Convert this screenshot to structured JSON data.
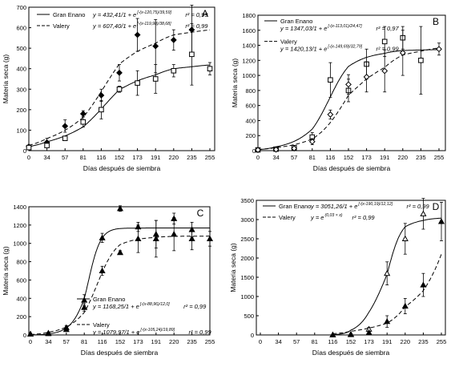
{
  "chart_data": [
    {
      "panel": "A",
      "type": "scatter",
      "xlabel": "Días después de siembra",
      "ylabel": "Materia seca (g)",
      "ylim": [
        0,
        700
      ],
      "yticks": [
        0,
        100,
        200,
        300,
        400,
        500,
        600,
        700
      ],
      "xticks": [
        0,
        34,
        57,
        81,
        116,
        152,
        173,
        191,
        220,
        235,
        255
      ],
      "legend_position": "top-left",
      "series": [
        {
          "name": "Gran Enano",
          "marker": "filled-diamond",
          "line": "solid",
          "equation": "y = 432,41/1 + e",
          "exponent": "[-(x-120,75)/39,59]",
          "r2": "r² = 0,99",
          "points": [
            {
              "x": 0,
              "y": 20,
              "err": 5
            },
            {
              "x": 34,
              "y": 40,
              "err": 20
            },
            {
              "x": 57,
              "y": 120,
              "err": 30
            },
            {
              "x": 81,
              "y": 180,
              "err": 15
            },
            {
              "x": 116,
              "y": 270,
              "err": 30
            },
            {
              "x": 152,
              "y": 380,
              "err": 40
            },
            {
              "x": 173,
              "y": 565,
              "err": 80
            },
            {
              "x": 191,
              "y": 510,
              "err": 130
            },
            {
              "x": 220,
              "y": 540,
              "err": 50
            },
            {
              "x": 235,
              "y": 590,
              "err": 120
            }
          ]
        },
        {
          "name": "Valery",
          "marker": "open-square",
          "line": "dashed",
          "equation": "y = 607,40/1 + e",
          "exponent": "[-(x-119,98)/38,68]",
          "r2": "r² = 0,99",
          "points": [
            {
              "x": 0,
              "y": 15,
              "err": 5
            },
            {
              "x": 34,
              "y": 25,
              "err": 10
            },
            {
              "x": 57,
              "y": 60,
              "err": 10
            },
            {
              "x": 81,
              "y": 140,
              "err": 25
            },
            {
              "x": 116,
              "y": 200,
              "err": 45
            },
            {
              "x": 152,
              "y": 300,
              "err": 15
            },
            {
              "x": 173,
              "y": 330,
              "err": 60
            },
            {
              "x": 191,
              "y": 350,
              "err": 70
            },
            {
              "x": 220,
              "y": 390,
              "err": 30
            },
            {
              "x": 235,
              "y": 470,
              "err": 150
            },
            {
              "x": 255,
              "y": 400,
              "err": 30
            }
          ]
        }
      ]
    },
    {
      "panel": "B",
      "type": "scatter",
      "xlabel": "Días después de siembra",
      "ylabel": "Materia seca (g)",
      "ylim": [
        0,
        1800
      ],
      "yticks": [
        0,
        200,
        400,
        600,
        800,
        1000,
        1200,
        1400,
        1600,
        1800
      ],
      "xticks": [
        0,
        34,
        57,
        81,
        116,
        152,
        173,
        191,
        220,
        235,
        255
      ],
      "legend_position": "top-left",
      "series": [
        {
          "name": "Gran Enano",
          "marker": "open-square",
          "line": "solid",
          "equation": "y = 1347,03/1 + e",
          "exponent": "[-(x-113,01)/24,47]",
          "r2": "r² = 0,97",
          "points": [
            {
              "x": 0,
              "y": 10,
              "err": 5
            },
            {
              "x": 34,
              "y": 20,
              "err": 10
            },
            {
              "x": 57,
              "y": 40,
              "err": 20
            },
            {
              "x": 81,
              "y": 180,
              "err": 60
            },
            {
              "x": 116,
              "y": 940,
              "err": 230
            },
            {
              "x": 152,
              "y": 800,
              "err": 150
            },
            {
              "x": 173,
              "y": 1150,
              "err": 200
            },
            {
              "x": 191,
              "y": 1450,
              "err": 200
            },
            {
              "x": 220,
              "y": 1500,
              "err": 150
            },
            {
              "x": 235,
              "y": 1200,
              "err": 450
            }
          ]
        },
        {
          "name": "Valery",
          "marker": "open-diamond",
          "line": "dashed",
          "equation": "y = 1420,13/1 + e",
          "exponent": "[-(x-149,69)/32,79]",
          "r2": "r² = 0,99",
          "points": [
            {
              "x": 0,
              "y": 10,
              "err": 5
            },
            {
              "x": 34,
              "y": 15,
              "err": 5
            },
            {
              "x": 57,
              "y": 30,
              "err": 10
            },
            {
              "x": 81,
              "y": 120,
              "err": 40
            },
            {
              "x": 116,
              "y": 480,
              "err": 60
            },
            {
              "x": 152,
              "y": 880,
              "err": 130
            },
            {
              "x": 173,
              "y": 980,
              "err": 200
            },
            {
              "x": 191,
              "y": 1060,
              "err": 280
            },
            {
              "x": 220,
              "y": 1300,
              "err": 300
            },
            {
              "x": 255,
              "y": 1350,
              "err": 80
            }
          ]
        }
      ]
    },
    {
      "panel": "C",
      "type": "scatter",
      "xlabel": "Días después de siembra",
      "ylabel": "Materia seca (g)",
      "ylim": [
        0,
        1400
      ],
      "yticks": [
        0,
        200,
        400,
        600,
        800,
        1000,
        1200,
        1400
      ],
      "xticks": [
        0,
        34,
        57,
        81,
        116,
        152,
        173,
        191,
        220,
        235,
        255
      ],
      "legend_position": "bottom-right",
      "series": [
        {
          "name": "Gran Enano",
          "marker": "triangle",
          "line": "solid",
          "equation": "y = 1168,25/1 + e",
          "exponent": "[-(x-88,96)/12,0]",
          "r2": "r² = 0,99",
          "points": [
            {
              "x": 0,
              "y": 10,
              "err": 5
            },
            {
              "x": 34,
              "y": 20,
              "err": 10
            },
            {
              "x": 57,
              "y": 80,
              "err": 20
            },
            {
              "x": 81,
              "y": 380,
              "err": 60
            },
            {
              "x": 116,
              "y": 1060,
              "err": 50
            },
            {
              "x": 152,
              "y": 1380,
              "err": 30
            },
            {
              "x": 173,
              "y": 1180,
              "err": 50
            },
            {
              "x": 191,
              "y": 1100,
              "err": 150
            },
            {
              "x": 220,
              "y": 1270,
              "err": 60
            },
            {
              "x": 235,
              "y": 1150,
              "err": 80
            }
          ]
        },
        {
          "name": "Valery",
          "marker": "triangle",
          "line": "dashed",
          "equation": "y = 1079,97/1 + e",
          "exponent": "[-(x-105,24)/19,89]",
          "r2": "r² = 0,99",
          "points": [
            {
              "x": 0,
              "y": 10,
              "err": 5
            },
            {
              "x": 34,
              "y": 15,
              "err": 5
            },
            {
              "x": 57,
              "y": 60,
              "err": 15
            },
            {
              "x": 81,
              "y": 300,
              "err": 40
            },
            {
              "x": 116,
              "y": 700,
              "err": 50
            },
            {
              "x": 152,
              "y": 900,
              "err": 20
            },
            {
              "x": 173,
              "y": 1050,
              "err": 150
            },
            {
              "x": 191,
              "y": 1050,
              "err": 200
            },
            {
              "x": 220,
              "y": 1100,
              "err": 180
            },
            {
              "x": 235,
              "y": 1050,
              "err": 120
            },
            {
              "x": 255,
              "y": 1050,
              "err": 80
            }
          ]
        }
      ]
    },
    {
      "panel": "D",
      "type": "scatter",
      "xlabel": "Días después de siembra",
      "ylabel": "Materia seca (g)",
      "ylim": [
        0,
        3500
      ],
      "yticks": [
        0,
        500,
        1000,
        1500,
        2000,
        2500,
        3000,
        3500
      ],
      "xticks": [
        0,
        34,
        57,
        81,
        116,
        152,
        173,
        191,
        220,
        235,
        255
      ],
      "legend_position": "top-left",
      "series": [
        {
          "name": "Gran Enano",
          "marker": "open-triangle",
          "line": "solid",
          "equation": "y = 3051,26/1 + e",
          "exponent": "[-(x-190,19)/12,12]",
          "r2": "r² = 0,99",
          "points": [
            {
              "x": 116,
              "y": 0,
              "err": 5
            },
            {
              "x": 152,
              "y": 20,
              "err": 10
            },
            {
              "x": 173,
              "y": 150,
              "err": 50
            },
            {
              "x": 191,
              "y": 1600,
              "err": 300
            },
            {
              "x": 220,
              "y": 2500,
              "err": 400
            },
            {
              "x": 235,
              "y": 3150,
              "err": 400
            }
          ]
        },
        {
          "name": "Valery",
          "marker": "filled-triangle",
          "line": "dashed",
          "equation": "y = e",
          "exponent": "(0,03 × x)",
          "r2": "r² = 0,99",
          "points": [
            {
              "x": 116,
              "y": 0,
              "err": 5
            },
            {
              "x": 152,
              "y": 10,
              "err": 5
            },
            {
              "x": 173,
              "y": 60,
              "err": 20
            },
            {
              "x": 191,
              "y": 350,
              "err": 150
            },
            {
              "x": 220,
              "y": 750,
              "err": 200
            },
            {
              "x": 235,
              "y": 1300,
              "err": 300
            },
            {
              "x": 255,
              "y": 2950,
              "err": 500
            }
          ]
        }
      ]
    }
  ]
}
